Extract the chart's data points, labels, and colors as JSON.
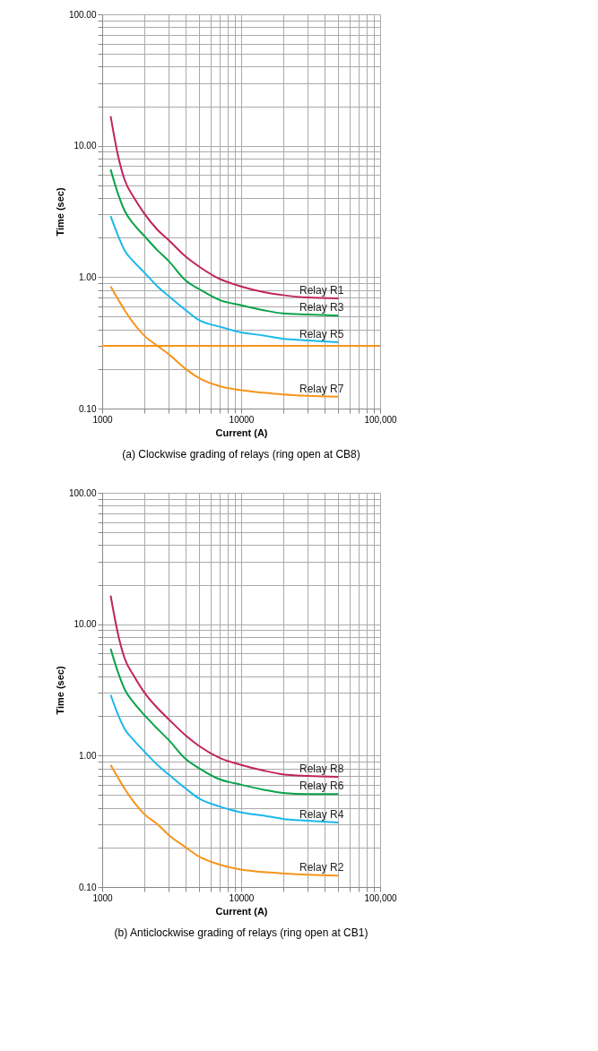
{
  "chart_data": [
    {
      "type": "line",
      "xlabel": "Current (A)",
      "ylabel": "Time (sec)",
      "log": "xy",
      "grid": true,
      "legend": false,
      "xlim": [
        1000,
        100000
      ],
      "ylim": [
        0.1,
        100
      ],
      "xticks": [
        1000,
        {
          "value": 2000,
          "label": null
        },
        {
          "value": 3000,
          "label": null
        },
        {
          "value": 4000,
          "label": null
        },
        {
          "value": 5000,
          "label": null
        },
        {
          "value": 6000,
          "label": null
        },
        {
          "value": 7000,
          "label": null
        },
        {
          "value": 8000,
          "label": null
        },
        {
          "value": 9000,
          "label": null
        },
        10000,
        {
          "value": 20000,
          "label": null
        },
        {
          "value": 30000,
          "label": null
        },
        {
          "value": 40000,
          "label": null
        },
        {
          "value": 50000,
          "label": null
        },
        {
          "value": 60000,
          "label": null
        },
        {
          "value": 70000,
          "label": null
        },
        {
          "value": 80000,
          "label": null
        },
        {
          "value": 90000,
          "label": null
        },
        {
          "value": 100000,
          "label": "100,000"
        }
      ],
      "yticks": [
        {
          "value": 0.1,
          "label": "0.10"
        },
        {
          "value": 0.2,
          "label": null
        },
        {
          "value": 0.3,
          "label": null
        },
        {
          "value": 0.4,
          "label": null
        },
        {
          "value": 0.5,
          "label": null
        },
        {
          "value": 0.6,
          "label": null
        },
        {
          "value": 0.7,
          "label": null
        },
        {
          "value": 0.8,
          "label": null
        },
        {
          "value": 0.9,
          "label": null
        },
        {
          "value": 1,
          "label": "1.00"
        },
        {
          "value": 2,
          "label": null
        },
        {
          "value": 3,
          "label": null
        },
        {
          "value": 4,
          "label": null
        },
        {
          "value": 5,
          "label": null
        },
        {
          "value": 6,
          "label": null
        },
        {
          "value": 7,
          "label": null
        },
        {
          "value": 8,
          "label": null
        },
        {
          "value": 9,
          "label": null
        },
        {
          "value": 10,
          "label": "10.00"
        },
        {
          "value": 20,
          "label": null
        },
        {
          "value": 30,
          "label": null
        },
        {
          "value": 40,
          "label": null
        },
        {
          "value": 50,
          "label": null
        },
        {
          "value": 60,
          "label": null
        },
        {
          "value": 70,
          "label": null
        },
        {
          "value": 80,
          "label": null
        },
        {
          "value": 90,
          "label": null
        },
        {
          "value": 100,
          "label": "100.00"
        }
      ],
      "x": [
        1150,
        1300,
        1450,
        1700,
        2000,
        2500,
        3000,
        4000,
        5000,
        7000,
        10000,
        14500,
        20000,
        30000,
        50000
      ],
      "series": [
        {
          "name": "Relay R1",
          "color": "#c0245c",
          "values": [
            16.8,
            8.4,
            5.5,
            4.0,
            3.07,
            2.29,
            1.92,
            1.43,
            1.2,
            0.97,
            0.85,
            0.77,
            0.73,
            0.7,
            0.69
          ]
        },
        {
          "name": "Relay R3",
          "color": "#0aa24a",
          "values": [
            6.6,
            4.3,
            3.2,
            2.5,
            2.07,
            1.6,
            1.33,
            0.94,
            0.81,
            0.67,
            0.61,
            0.56,
            0.53,
            0.52,
            0.51
          ]
        },
        {
          "name": "Relay R5",
          "color": "#1ab8ea",
          "values": [
            2.92,
            2.07,
            1.6,
            1.3,
            1.09,
            0.85,
            0.72,
            0.56,
            0.47,
            0.42,
            0.38,
            0.36,
            0.34,
            0.33,
            0.32
          ]
        },
        {
          "name": "Relay R7",
          "color": "#f7941d",
          "values": [
            0.85,
            0.68,
            0.56,
            0.44,
            0.36,
            0.3,
            0.26,
            0.2,
            0.17,
            0.148,
            0.138,
            0.132,
            0.128,
            0.125,
            0.123
          ]
        }
      ],
      "ref_lines": [
        {
          "axis": "y",
          "value": 0.3,
          "color": "#f7941d"
        }
      ],
      "annotations": [
        "(a) Clockwise grading of relays (ring open at CB8)"
      ]
    },
    {
      "type": "line",
      "xlabel": "Current (A)",
      "ylabel": "Time (sec)",
      "log": "xy",
      "grid": true,
      "legend": false,
      "xlim": [
        1000,
        100000
      ],
      "ylim": [
        0.1,
        100
      ],
      "xticks": [
        1000,
        {
          "value": 2000,
          "label": null
        },
        {
          "value": 3000,
          "label": null
        },
        {
          "value": 4000,
          "label": null
        },
        {
          "value": 5000,
          "label": null
        },
        {
          "value": 6000,
          "label": null
        },
        {
          "value": 7000,
          "label": null
        },
        {
          "value": 8000,
          "label": null
        },
        {
          "value": 9000,
          "label": null
        },
        10000,
        {
          "value": 20000,
          "label": null
        },
        {
          "value": 30000,
          "label": null
        },
        {
          "value": 40000,
          "label": null
        },
        {
          "value": 50000,
          "label": null
        },
        {
          "value": 60000,
          "label": null
        },
        {
          "value": 70000,
          "label": null
        },
        {
          "value": 80000,
          "label": null
        },
        {
          "value": 90000,
          "label": null
        },
        {
          "value": 100000,
          "label": "100,000"
        }
      ],
      "yticks": [
        {
          "value": 0.1,
          "label": "0.10"
        },
        {
          "value": 0.2,
          "label": null
        },
        {
          "value": 0.3,
          "label": null
        },
        {
          "value": 0.4,
          "label": null
        },
        {
          "value": 0.5,
          "label": null
        },
        {
          "value": 0.6,
          "label": null
        },
        {
          "value": 0.7,
          "label": null
        },
        {
          "value": 0.8,
          "label": null
        },
        {
          "value": 0.9,
          "label": null
        },
        {
          "value": 1,
          "label": "1.00"
        },
        {
          "value": 2,
          "label": null
        },
        {
          "value": 3,
          "label": null
        },
        {
          "value": 4,
          "label": null
        },
        {
          "value": 5,
          "label": null
        },
        {
          "value": 6,
          "label": null
        },
        {
          "value": 7,
          "label": null
        },
        {
          "value": 8,
          "label": null
        },
        {
          "value": 9,
          "label": null
        },
        {
          "value": 10,
          "label": "10.00"
        },
        {
          "value": 20,
          "label": null
        },
        {
          "value": 30,
          "label": null
        },
        {
          "value": 40,
          "label": null
        },
        {
          "value": 50,
          "label": null
        },
        {
          "value": 60,
          "label": null
        },
        {
          "value": 70,
          "label": null
        },
        {
          "value": 80,
          "label": null
        },
        {
          "value": 90,
          "label": null
        },
        {
          "value": 100,
          "label": "100.00"
        }
      ],
      "x": [
        1150,
        1300,
        1450,
        1700,
        2000,
        2500,
        3000,
        4000,
        5000,
        7000,
        10000,
        14500,
        20000,
        30000,
        50000
      ],
      "series": [
        {
          "name": "Relay R8",
          "color": "#c0245c",
          "values": [
            16.5,
            8.4,
            5.5,
            4.0,
            3.05,
            2.3,
            1.9,
            1.42,
            1.18,
            0.96,
            0.85,
            0.77,
            0.72,
            0.7,
            0.69
          ]
        },
        {
          "name": "Relay R6",
          "color": "#0aa24a",
          "values": [
            6.5,
            4.3,
            3.2,
            2.5,
            2.05,
            1.6,
            1.32,
            0.94,
            0.8,
            0.66,
            0.6,
            0.55,
            0.52,
            0.51,
            0.51
          ]
        },
        {
          "name": "Relay R4",
          "color": "#1ab8ea",
          "values": [
            2.9,
            2.05,
            1.6,
            1.3,
            1.08,
            0.85,
            0.72,
            0.56,
            0.47,
            0.41,
            0.37,
            0.35,
            0.33,
            0.32,
            0.31
          ]
        },
        {
          "name": "Relay R2",
          "color": "#f7941d",
          "values": [
            0.85,
            0.68,
            0.56,
            0.44,
            0.36,
            0.3,
            0.25,
            0.2,
            0.17,
            0.148,
            0.136,
            0.13,
            0.127,
            0.124,
            0.122
          ]
        }
      ],
      "annotations": [
        "(b) Anticlockwise grading of relays (ring open at CB1)"
      ]
    }
  ]
}
